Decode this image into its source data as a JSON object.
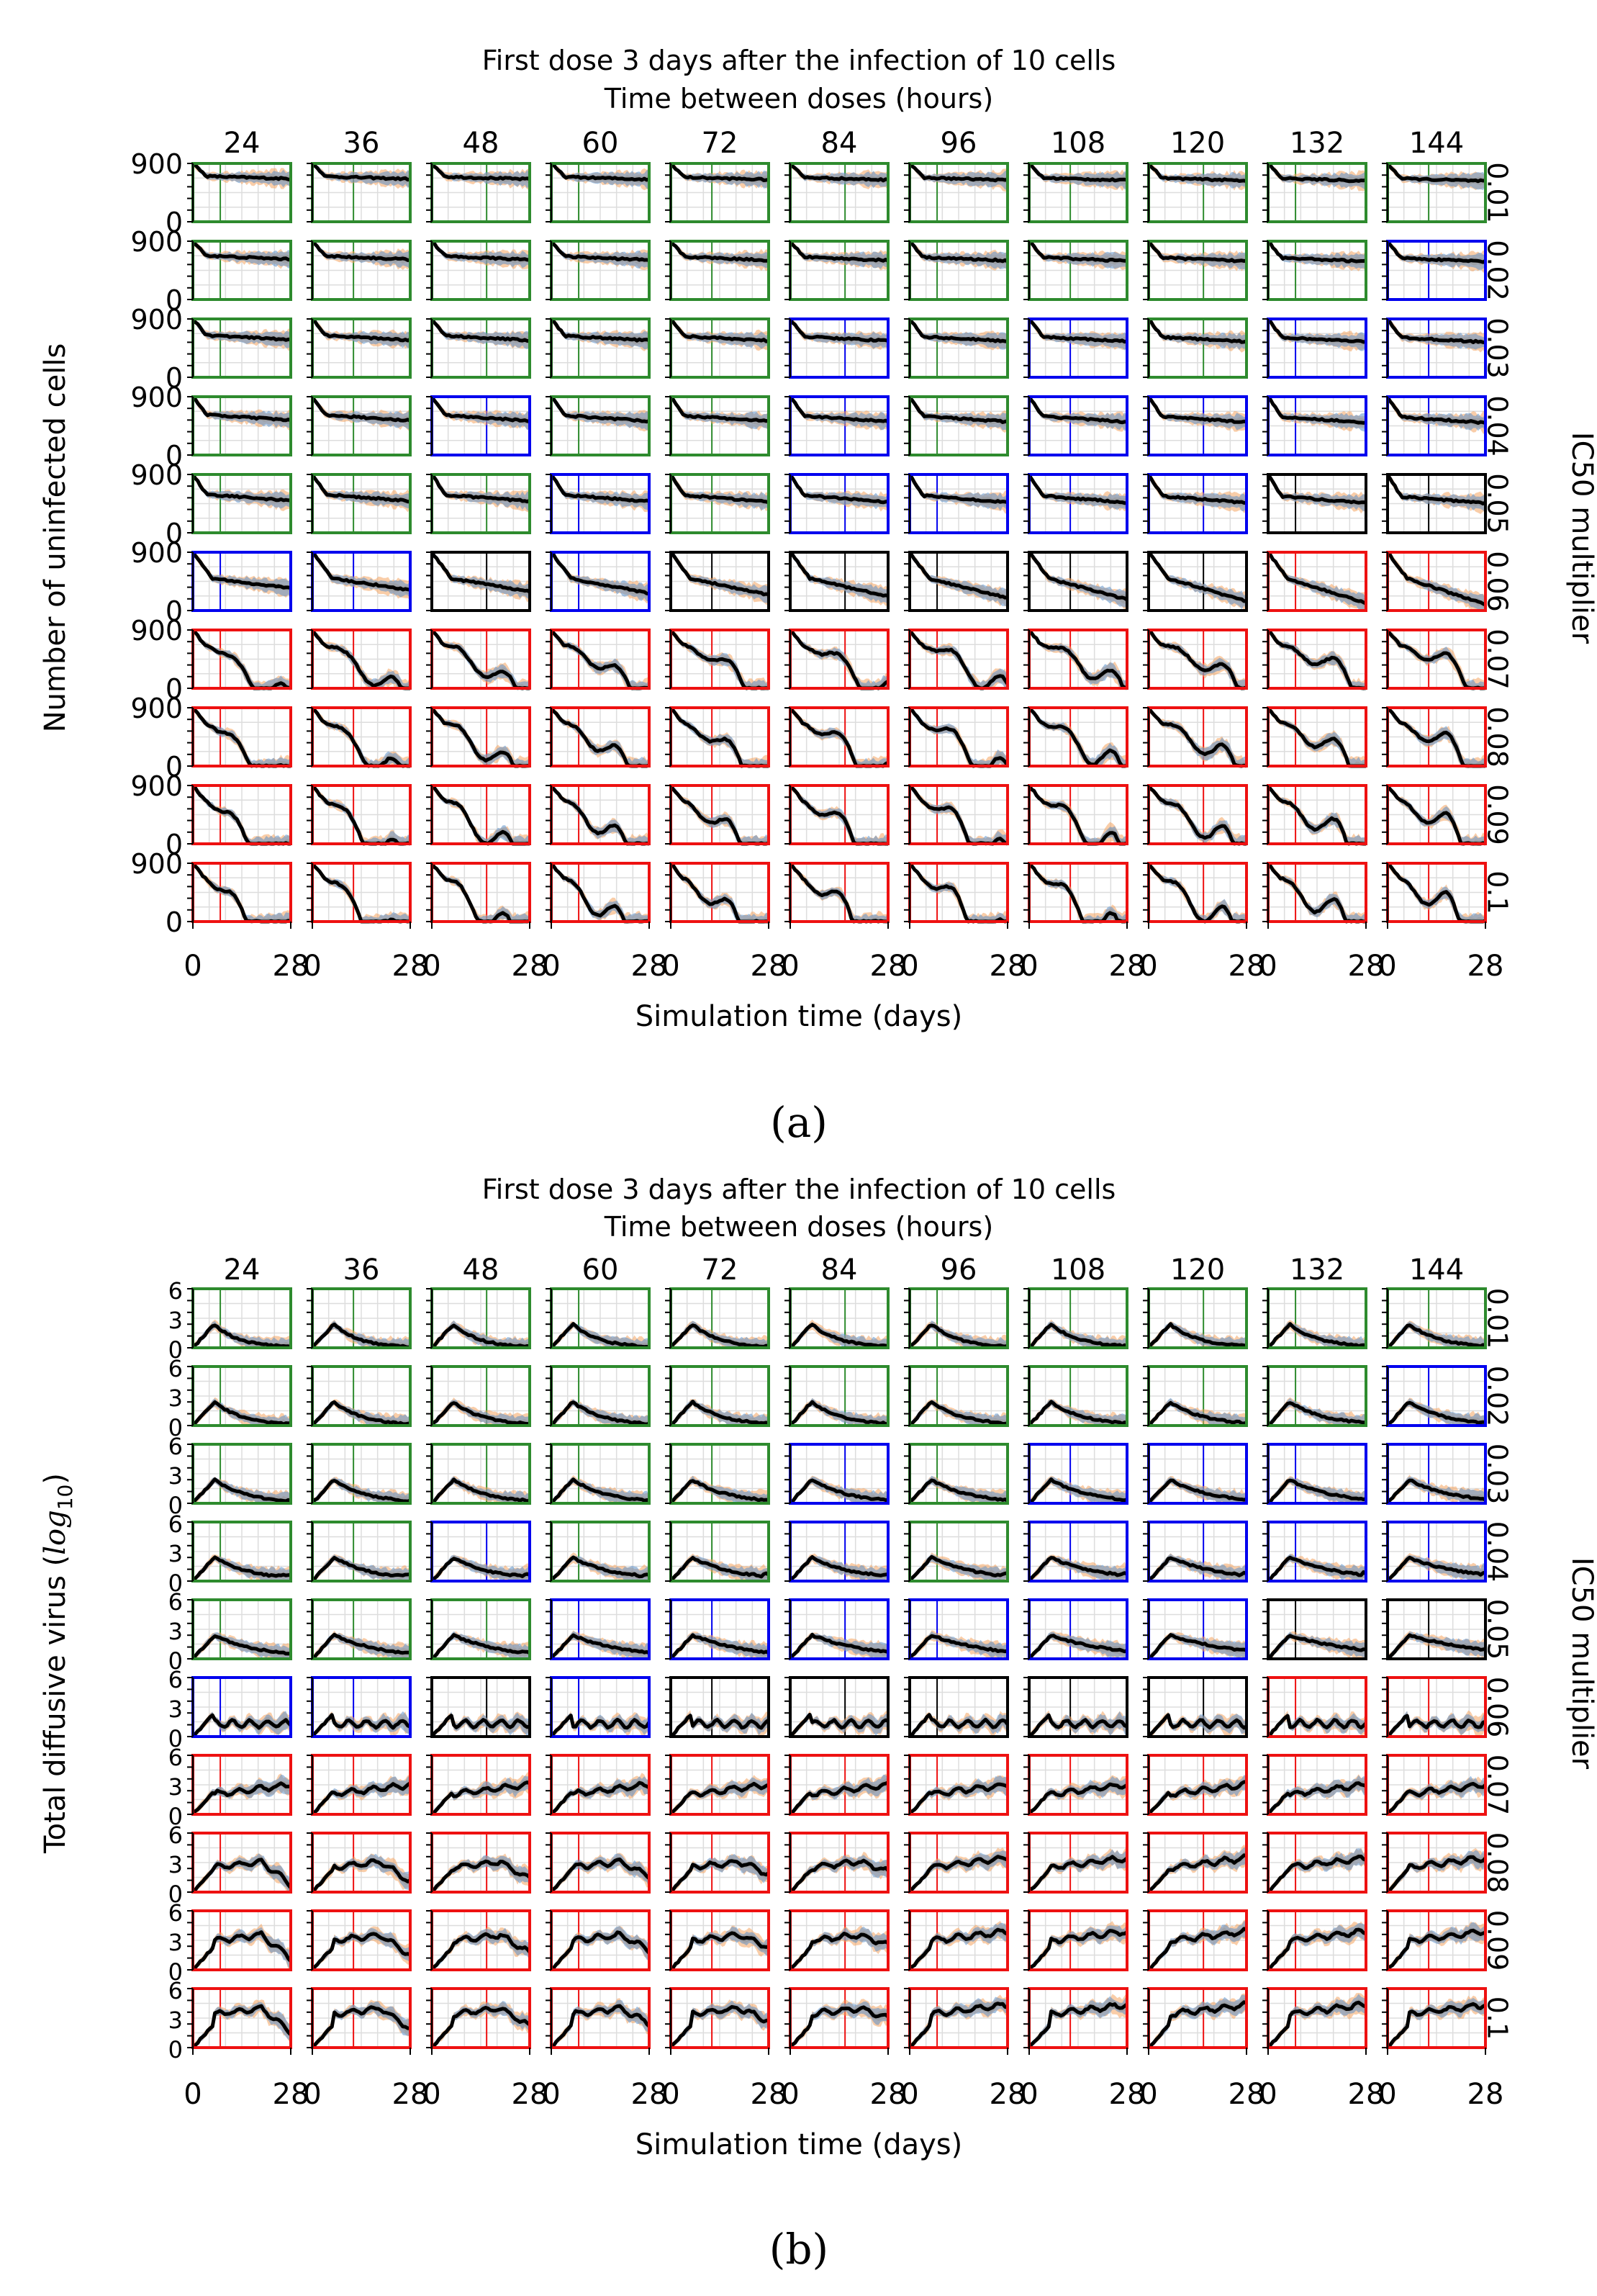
{
  "panels": [
    {
      "letter": "(a)",
      "title_line1": "First dose 3 days after the infection of 10 cells",
      "title_line2": "Time between doses (hours)",
      "ylabel": "Number of uninfected cells",
      "xlabel": "Simulation time (days)",
      "right_label": "IC50 multiplier"
    },
    {
      "letter": "(b)",
      "title_line1": "First dose 3 days after the infection of 10 cells",
      "title_line2": "Time between doses (hours)",
      "ylabel_main": "Total diffusive virus (",
      "ylabel_math": "log",
      "ylabel_sub": "10",
      "ylabel_end": ")",
      "xlabel": "Simulation time (days)",
      "right_label": "IC50 multiplier"
    }
  ],
  "chart_data": [
    {
      "type": "line",
      "title": "First dose 3 days after the infection of 10 cells",
      "subtitle": "Time between doses (hours)",
      "xlabel": "Simulation time (days)",
      "ylabel": "Number of uninfected cells",
      "right_label": "IC50 multiplier",
      "columns": [
        "24",
        "36",
        "48",
        "60",
        "72",
        "84",
        "96",
        "108",
        "120",
        "132",
        "144"
      ],
      "rows": [
        "0.01",
        "0.02",
        "0.03",
        "0.04",
        "0.05",
        "0.06",
        "0.07",
        "0.08",
        "0.09",
        "0.1"
      ],
      "xlim": [
        0,
        28
      ],
      "xticks": [
        "0",
        "28"
      ],
      "ylim": [
        0,
        900
      ],
      "yticks": [
        "0",
        "900"
      ],
      "status_colors": {
        "G": "#2e8b2e",
        "B": "#0000ee",
        "K": "#000000",
        "R": "#ee1111"
      },
      "status_grid": [
        "GGGGGGGGGGG",
        "GGGGGGGGGGB",
        "GGGGGBGBGBB",
        "GGBGGBGBBBB",
        "GGGBGBBBBKK",
        "BBKBKKKKKRR",
        "RRRRRRRRRRR",
        "RRRRRRRRRRR",
        "RRRRRRRRRRR",
        "RRRRRRRRRRR"
      ]
    },
    {
      "type": "line",
      "title": "First dose 3 days after the infection of 10 cells",
      "subtitle": "Time between doses (hours)",
      "xlabel": "Simulation time (days)",
      "ylabel": "Total diffusive virus (log10)",
      "right_label": "IC50 multiplier",
      "columns": [
        "24",
        "36",
        "48",
        "60",
        "72",
        "84",
        "96",
        "108",
        "120",
        "132",
        "144"
      ],
      "rows": [
        "0.01",
        "0.02",
        "0.03",
        "0.04",
        "0.05",
        "0.06",
        "0.07",
        "0.08",
        "0.09",
        "0.1"
      ],
      "xlim": [
        0,
        28
      ],
      "xticks": [
        "0",
        "28"
      ],
      "ylim": [
        0,
        6
      ],
      "yticks": [
        "0",
        "3",
        "6"
      ],
      "status_colors": {
        "G": "#2e8b2e",
        "B": "#0000ee",
        "K": "#000000",
        "R": "#ee1111"
      },
      "status_grid": [
        "GGGGGGGGGGG",
        "GGGGGGGGGGB",
        "GGGGGBGBBBB",
        "GGBGGBGBBBB",
        "GGGBBBBBBKK",
        "BBKBKKKKKRR",
        "RRRRRRRRRRR",
        "RRRRRRRRRRR",
        "RRRRRRRRRRR",
        "RRRRRRRRRRR"
      ]
    }
  ]
}
